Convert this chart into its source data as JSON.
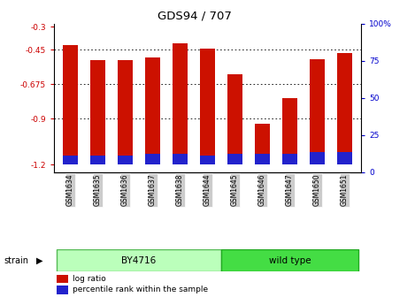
{
  "title": "GDS94 / 707",
  "samples": [
    "GSM1634",
    "GSM1635",
    "GSM1636",
    "GSM1637",
    "GSM1638",
    "GSM1644",
    "GSM1645",
    "GSM1646",
    "GSM1647",
    "GSM1650",
    "GSM1651"
  ],
  "bar_bottoms": [
    -1.2,
    -1.2,
    -1.2,
    -1.2,
    -1.2,
    -1.2,
    -1.2,
    -1.2,
    -1.2,
    -1.2,
    -1.2
  ],
  "bar_tops": [
    -0.42,
    -0.52,
    -0.52,
    -0.5,
    -0.41,
    -0.44,
    -0.61,
    -0.935,
    -0.765,
    -0.51,
    -0.47
  ],
  "pct_bottoms": [
    -1.2,
    -1.2,
    -1.2,
    -1.2,
    -1.2,
    -1.2,
    -1.2,
    -1.2,
    -1.2,
    -1.2,
    -1.2
  ],
  "pct_tops": [
    -1.14,
    -1.14,
    -1.14,
    -1.13,
    -1.13,
    -1.14,
    -1.13,
    -1.13,
    -1.13,
    -1.12,
    -1.12
  ],
  "ylim_left": [
    -1.25,
    -0.28
  ],
  "ylim_right": [
    0,
    100
  ],
  "yticks_left": [
    -1.2,
    -0.9,
    -0.675,
    -0.45,
    -0.3
  ],
  "yticks_right": [
    0,
    25,
    50,
    75,
    100
  ],
  "left_color": "#cc0000",
  "right_color": "#0000cc",
  "bar_color": "#cc1100",
  "percentile_color": "#2222cc",
  "by4716_color": "#bbffbb",
  "by4716_edge": "#55bb55",
  "wildtype_color": "#44dd44",
  "wildtype_edge": "#22aa22",
  "tick_bg": "#cccccc"
}
